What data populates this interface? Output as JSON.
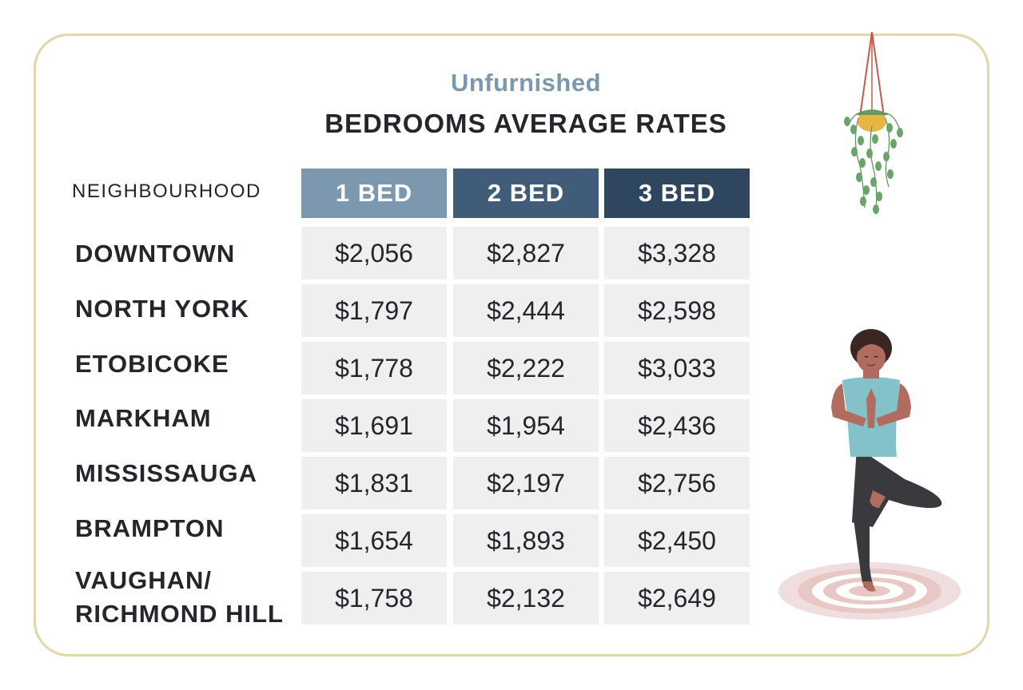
{
  "chart_data": {
    "type": "table",
    "subtitle": "Unfurnished",
    "title": "BEDROOMS AVERAGE RATES",
    "row_header": "NEIGHBOURHOOD",
    "columns": [
      "1 BED",
      "2 BED",
      "3 BED"
    ],
    "rows": [
      {
        "name": "DOWNTOWN",
        "values": [
          "$2,056",
          "$2,827",
          "$3,328"
        ]
      },
      {
        "name": "NORTH YORK",
        "values": [
          "$1,797",
          "$2,444",
          "$2,598"
        ]
      },
      {
        "name": "ETOBICOKE",
        "values": [
          "$1,778",
          "$2,222",
          "$3,033"
        ]
      },
      {
        "name": "MARKHAM",
        "values": [
          "$1,691",
          "$1,954",
          "$2,436"
        ]
      },
      {
        "name": "MISSISSAUGA",
        "values": [
          "$1,831",
          "$2,197",
          "$2,756"
        ]
      },
      {
        "name": "BRAMPTON",
        "values": [
          "$1,654",
          "$1,893",
          "$2,450"
        ]
      },
      {
        "name": "VAUGHAN/ RICHMOND HILL",
        "name_lines": [
          "VAUGHAN/",
          "RICHMOND HILL"
        ],
        "values": [
          "$1,758",
          "$2,132",
          "$2,649"
        ]
      }
    ]
  },
  "colors": {
    "subtitle": "#7b98ae",
    "header_1": "#7b98ae",
    "header_2": "#405c78",
    "header_3": "#2e465e",
    "cell_bg": "#efefef",
    "border": "#e3d7a9"
  },
  "icons": {
    "plant": "hanging-plant-illustration",
    "person": "yoga-woman-illustration"
  }
}
